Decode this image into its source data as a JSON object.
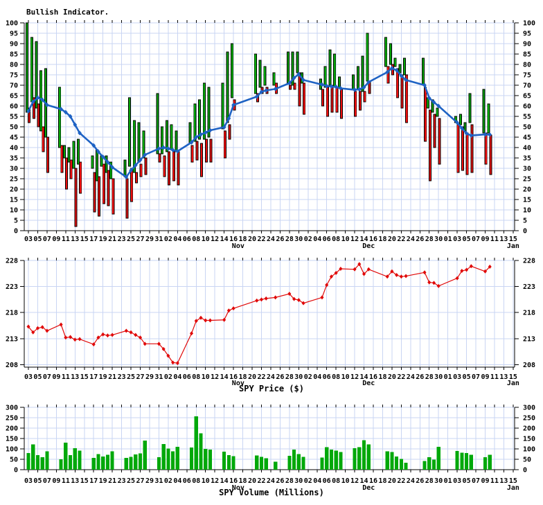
{
  "page": {
    "title": "Bullish Indicator.",
    "price_axis_title": "SPY Price ($)",
    "volume_axis_title": "SPY Volume (Millions)"
  },
  "colors": {
    "green": "#00a80a",
    "red": "#ee1010",
    "ma_blue": "#1e62c4",
    "price_red": "#e00808",
    "grid": "#c9d5f3",
    "axis": "#000000",
    "text": "#000000",
    "background": "#ffffff"
  },
  "x_axis": {
    "tick_labels": [
      "03",
      "05",
      "07",
      "09",
      "11",
      "13",
      "15",
      "17",
      "19",
      "21",
      "23",
      "25",
      "27",
      "29",
      "31",
      "02",
      "04",
      "06",
      "08",
      "10",
      "12",
      "14",
      "16",
      "18",
      "20",
      "22",
      "24",
      "26",
      "28",
      "30",
      "02",
      "04",
      "06",
      "08",
      "10",
      "12",
      "14",
      "16",
      "18",
      "20",
      "22",
      "24",
      "26",
      "28",
      "30",
      "01",
      "03",
      "05",
      "07",
      "09",
      "11",
      "13",
      "15"
    ],
    "months": [
      {
        "label": "Nov",
        "day_offset": 45
      },
      {
        "label": "Dec",
        "day_offset": 73
      },
      {
        "label": "Jan",
        "day_offset": 104
      }
    ]
  },
  "chart_data": [
    {
      "type": "bar",
      "title": "Bullish Indicator.",
      "ylabel": "",
      "ylim": [
        0,
        100
      ],
      "ytick_step": 5,
      "legend_position": "none",
      "grid": true,
      "categories": [
        "Oct 03",
        "Oct 04",
        "Oct 05",
        "Oct 06",
        "Oct 07",
        "Oct 10",
        "Oct 11",
        "Oct 12",
        "Oct 13",
        "Oct 14",
        "Oct 17",
        "Oct 18",
        "Oct 19",
        "Oct 20",
        "Oct 21",
        "Oct 24",
        "Oct 25",
        "Oct 26",
        "Oct 27",
        "Oct 28",
        "Oct 31",
        "Nov 01",
        "Nov 02",
        "Nov 03",
        "Nov 04",
        "Nov 07",
        "Nov 08",
        "Nov 09",
        "Nov 10",
        "Nov 11",
        "Nov 14",
        "Nov 15",
        "Nov 16",
        "Nov 21",
        "Nov 22",
        "Nov 23",
        "Nov 25",
        "Nov 28",
        "Nov 29",
        "Nov 30",
        "Dec 01",
        "Dec 05",
        "Dec 06",
        "Dec 07",
        "Dec 08",
        "Dec 09",
        "Dec 12",
        "Dec 13",
        "Dec 14",
        "Dec 15",
        "Dec 19",
        "Dec 20",
        "Dec 21",
        "Dec 22",
        "Dec 23",
        "Dec 27",
        "Dec 28",
        "Dec 29",
        "Dec 30",
        "Jan 03",
        "Jan 04",
        "Jan 05",
        "Jan 06",
        "Jan 09",
        "Jan 10"
      ],
      "day_offsets": [
        0,
        1,
        2,
        3,
        4,
        7,
        8,
        9,
        10,
        11,
        14,
        15,
        16,
        17,
        18,
        21,
        22,
        23,
        24,
        25,
        28,
        29,
        30,
        31,
        32,
        35,
        36,
        37,
        38,
        39,
        42,
        43,
        44,
        49,
        50,
        51,
        53,
        56,
        57,
        58,
        59,
        63,
        64,
        65,
        66,
        67,
        70,
        71,
        72,
        73,
        77,
        78,
        79,
        80,
        81,
        85,
        86,
        87,
        88,
        92,
        93,
        94,
        95,
        98,
        99
      ],
      "series": [
        {
          "name": "bull-range-green",
          "type": "range-bar",
          "ranges": [
            [
              57,
              100
            ],
            [
              62,
              93
            ],
            [
              59,
              91
            ],
            [
              48,
              77
            ],
            [
              45,
              78
            ],
            [
              40,
              69
            ],
            [
              35,
              41
            ],
            [
              33,
              40
            ],
            [
              30,
              43
            ],
            [
              32,
              44
            ],
            [
              30,
              36
            ],
            [
              24,
              39
            ],
            [
              31,
              36
            ],
            [
              28,
              36
            ],
            [
              25,
              33
            ],
            [
              26,
              34
            ],
            [
              31,
              64
            ],
            [
              28,
              53
            ],
            [
              33,
              52
            ],
            [
              35,
              48
            ],
            [
              37,
              66
            ],
            [
              37,
              50
            ],
            [
              38,
              53
            ],
            [
              39,
              51
            ],
            [
              38,
              48
            ],
            [
              42,
              52
            ],
            [
              43,
              61
            ],
            [
              44,
              63
            ],
            [
              44,
              71
            ],
            [
              45,
              69
            ],
            [
              49,
              71
            ],
            [
              52,
              86
            ],
            [
              64,
              90
            ],
            [
              66,
              85
            ],
            [
              69,
              82
            ],
            [
              70,
              79
            ],
            [
              70,
              76
            ],
            [
              71,
              86
            ],
            [
              70,
              86
            ],
            [
              76,
              86
            ],
            [
              71,
              76
            ],
            [
              68,
              73
            ],
            [
              69,
              79
            ],
            [
              70,
              87
            ],
            [
              69,
              85
            ],
            [
              69,
              74
            ],
            [
              68,
              75
            ],
            [
              68,
              79
            ],
            [
              67,
              84
            ],
            [
              72,
              95
            ],
            [
              79,
              93
            ],
            [
              80,
              90
            ],
            [
              79,
              83
            ],
            [
              76,
              80
            ],
            [
              75,
              83
            ],
            [
              70,
              83
            ],
            [
              59,
              64
            ],
            [
              57,
              63
            ],
            [
              55,
              59
            ],
            [
              52,
              55
            ],
            [
              51,
              56
            ],
            [
              48,
              52
            ],
            [
              52,
              66
            ],
            [
              47,
              68
            ],
            [
              47,
              61
            ]
          ]
        },
        {
          "name": "bear-range-red",
          "type": "range-bar",
          "ranges": [
            [
              52,
              59
            ],
            [
              54,
              64
            ],
            [
              50,
              61
            ],
            [
              38,
              50
            ],
            [
              28,
              45
            ],
            [
              28,
              41
            ],
            [
              20,
              35
            ],
            [
              25,
              34
            ],
            [
              2,
              30
            ],
            [
              18,
              33
            ],
            [
              9,
              28
            ],
            [
              7,
              26
            ],
            [
              13,
              32
            ],
            [
              12,
              29
            ],
            [
              8,
              25
            ],
            [
              6,
              25
            ],
            [
              14,
              30
            ],
            [
              23,
              28
            ],
            [
              26,
              32
            ],
            [
              27,
              35
            ],
            [
              33,
              37
            ],
            [
              26,
              36
            ],
            [
              22,
              38
            ],
            [
              24,
              38
            ],
            [
              22,
              38
            ],
            [
              33,
              41
            ],
            [
              34,
              43
            ],
            [
              26,
              42
            ],
            [
              33,
              44
            ],
            [
              33,
              44
            ],
            [
              35,
              48
            ],
            [
              44,
              51
            ],
            [
              58,
              63
            ],
            [
              62,
              66
            ],
            [
              66,
              69
            ],
            [
              66,
              69
            ],
            [
              66,
              71
            ],
            [
              68,
              70
            ],
            [
              68,
              71
            ],
            [
              60,
              76
            ],
            [
              56,
              71
            ],
            [
              60,
              68
            ],
            [
              55,
              69
            ],
            [
              57,
              70
            ],
            [
              57,
              69
            ],
            [
              54,
              68
            ],
            [
              55,
              67
            ],
            [
              58,
              67
            ],
            [
              62,
              67
            ],
            [
              66,
              72
            ],
            [
              71,
              79
            ],
            [
              75,
              80
            ],
            [
              64,
              78
            ],
            [
              59,
              75
            ],
            [
              52,
              75
            ],
            [
              43,
              69
            ],
            [
              24,
              58
            ],
            [
              40,
              56
            ],
            [
              32,
              54
            ],
            [
              28,
              51
            ],
            [
              29,
              50
            ],
            [
              27,
              47
            ],
            [
              28,
              51
            ],
            [
              32,
              47
            ],
            [
              27,
              46
            ]
          ]
        },
        {
          "name": "moving-average",
          "type": "line",
          "values": [
            57.5,
            62,
            64,
            63,
            60.5,
            58.5,
            57,
            55,
            51,
            47,
            41,
            38,
            35.5,
            33,
            30.5,
            25.8,
            29,
            31.5,
            34,
            36.5,
            39.5,
            40,
            39.5,
            38.8,
            38.2,
            42.5,
            45,
            46.3,
            47.2,
            48.3,
            49.8,
            54,
            60.5,
            64.5,
            66.8,
            67.5,
            68.2,
            71,
            73.5,
            75.3,
            72.5,
            70.3,
            69.6,
            69.4,
            69.2,
            68.5,
            67.8,
            68,
            69,
            71.5,
            76.3,
            78.2,
            77.2,
            74.5,
            72.5,
            70,
            63.8,
            61.8,
            60,
            52,
            49.3,
            46.8,
            45.8,
            46.3,
            46.2
          ]
        }
      ]
    },
    {
      "type": "line",
      "title": "SPY Price ($)",
      "ylim": [
        208,
        228
      ],
      "ytick_step": 5,
      "marker": "diamond",
      "grid": true,
      "values": [
        215.3,
        214.2,
        215.0,
        215.2,
        214.5,
        215.7,
        213.2,
        213.3,
        212.8,
        212.9,
        211.9,
        213.2,
        213.8,
        213.6,
        213.7,
        214.5,
        214.2,
        213.7,
        213.2,
        212.0,
        212.0,
        211.0,
        209.7,
        208.4,
        208.3,
        214.0,
        216.4,
        217.0,
        216.5,
        216.5,
        216.6,
        218.4,
        218.8,
        220.3,
        220.5,
        220.7,
        220.9,
        221.6,
        220.6,
        220.4,
        219.8,
        220.9,
        223.3,
        224.9,
        225.6,
        226.4,
        226.3,
        227.3,
        225.4,
        226.3,
        224.9,
        225.9,
        225.2,
        224.9,
        225.0,
        225.7,
        223.8,
        223.7,
        223.1,
        224.6,
        226.0,
        226.2,
        226.9,
        225.9,
        226.8
      ]
    },
    {
      "type": "bar",
      "title": "SPY Volume (Millions)",
      "ylim": [
        0,
        300
      ],
      "ytick_step": 50,
      "grid": true,
      "values": [
        80,
        121,
        70,
        60,
        88,
        50,
        130,
        70,
        103,
        92,
        57,
        75,
        64,
        72,
        88,
        57,
        62,
        74,
        78,
        140,
        60,
        124,
        102,
        88,
        110,
        107,
        257,
        175,
        100,
        96,
        86,
        70,
        65,
        68,
        62,
        55,
        38,
        67,
        97,
        75,
        62,
        58,
        109,
        97,
        92,
        85,
        103,
        108,
        141,
        122,
        88,
        85,
        63,
        52,
        33,
        41,
        60,
        49,
        110,
        90,
        81,
        80,
        72,
        60,
        72
      ]
    }
  ]
}
